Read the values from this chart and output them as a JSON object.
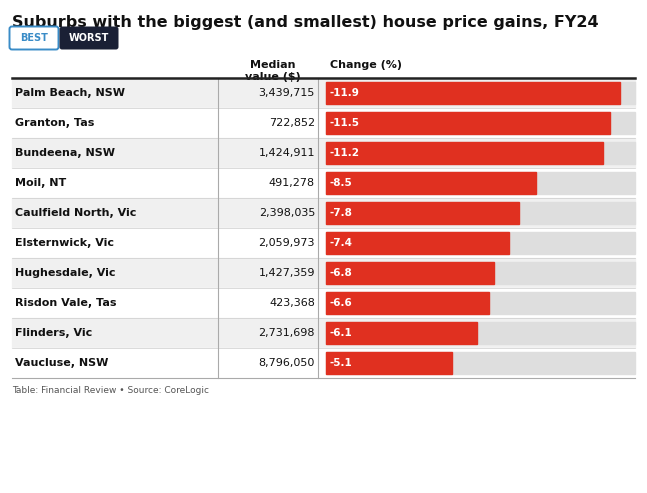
{
  "title": "Suburbs with the biggest (and smallest) house price gains, FY24",
  "subtitle_best": "BEST",
  "subtitle_worst": "WORST",
  "col_header_median": "Median\nvalue ($)",
  "col_header_change": "Change (%)",
  "footer": "Table: Financial Review • Source: CoreLogic",
  "suburbs": [
    "Palm Beach, NSW",
    "Granton, Tas",
    "Bundeena, NSW",
    "Moil, NT",
    "Caulfield North, Vic",
    "Elsternwick, Vic",
    "Hughesdale, Vic",
    "Risdon Vale, Tas",
    "Flinders, Vic",
    "Vaucluse, NSW"
  ],
  "median_values": [
    "3,439,715",
    "722,852",
    "1,424,911",
    "491,278",
    "2,398,035",
    "2,059,973",
    "1,427,359",
    "423,368",
    "2,731,698",
    "8,796,050"
  ],
  "changes": [
    -11.9,
    -11.5,
    -11.2,
    -8.5,
    -7.8,
    -7.4,
    -6.8,
    -6.6,
    -6.1,
    -5.1
  ],
  "bar_color": "#e03020",
  "bar_bg_color": "#dedede",
  "row_bg_even": "#f0f0f0",
  "row_bg_odd": "#ffffff",
  "header_line_color": "#222222",
  "text_color": "#111111",
  "label_color": "#ffffff",
  "background_color": "#ffffff",
  "best_btn_border": "#3a8cc7",
  "best_btn_text": "#3a8cc7",
  "worst_btn_color": "#1a2035",
  "worst_btn_text": "#ffffff",
  "bar_min": -12.5,
  "bar_max": 0
}
